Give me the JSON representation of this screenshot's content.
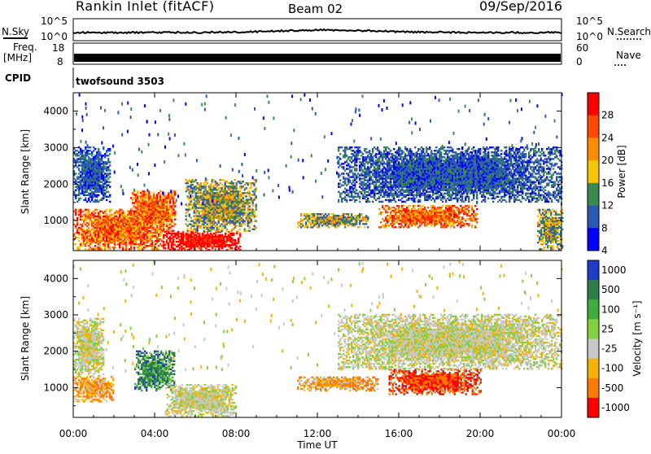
{
  "header": {
    "station": "Rankin Inlet (fitACF)",
    "beam": "Beam 02",
    "date": "09/Sep/2016"
  },
  "strips": {
    "nsky_label": "N.Sky",
    "nsky_ticks": [
      "10^5",
      "10^0"
    ],
    "nsearch_label": "N.Search",
    "nsearch_ticks": [
      "10^5",
      "10^0"
    ],
    "freq_label": "Freq.",
    "freq_unit": "[MHz]",
    "freq_ticks": [
      "18",
      "8"
    ],
    "nave_label": "Nave",
    "nave_ticks": [
      "60",
      "0"
    ],
    "cpid_label": "CPID",
    "cpid_value": "twofsound 3503"
  },
  "x_axis": {
    "title": "Time UT",
    "ticks": [
      "00:00",
      "04:00",
      "08:00",
      "12:00",
      "16:00",
      "20:00",
      "00:00"
    ],
    "hours": [
      0,
      4,
      8,
      12,
      16,
      20,
      24
    ]
  },
  "chart_data": [
    {
      "type": "heatmap",
      "panel": "power",
      "ylabel": "Slant Range [km]",
      "ylim": [
        180,
        4500
      ],
      "y_ticks": [
        1000,
        2000,
        3000,
        4000
      ],
      "xlim_hours": [
        0,
        24
      ],
      "colorbar": {
        "title": "Power [dB]",
        "ticks": [
          "28",
          "24",
          "20",
          "16",
          "12",
          "8",
          "4"
        ],
        "colors": [
          "#ff0000",
          "#ff4a00",
          "#ff8c00",
          "#f7c600",
          "#3a8a50",
          "#2a5ab0",
          "#0000ff"
        ]
      },
      "regions": [
        {
          "t0": 0.0,
          "t1": 4.4,
          "r0": 200,
          "r1": 1300,
          "level": "strong"
        },
        {
          "t0": 2.8,
          "t1": 5.0,
          "r0": 700,
          "r1": 1800,
          "level": "strong"
        },
        {
          "t0": 4.4,
          "t1": 8.2,
          "r0": 180,
          "r1": 700,
          "level": "very-strong"
        },
        {
          "t0": 5.5,
          "t1": 9.0,
          "r0": 700,
          "r1": 2100,
          "level": "moderate"
        },
        {
          "t0": 0.0,
          "t1": 1.8,
          "r0": 1500,
          "r1": 3000,
          "level": "weak"
        },
        {
          "t0": 11.0,
          "t1": 14.5,
          "r0": 800,
          "r1": 1200,
          "level": "moderate"
        },
        {
          "t0": 15.0,
          "t1": 19.8,
          "r0": 800,
          "r1": 1400,
          "level": "strong"
        },
        {
          "t0": 13.0,
          "t1": 24.0,
          "r0": 1500,
          "r1": 3000,
          "level": "weak"
        },
        {
          "t0": 22.8,
          "t1": 24.0,
          "r0": 200,
          "r1": 1300,
          "level": "moderate"
        }
      ]
    },
    {
      "type": "heatmap",
      "panel": "velocity",
      "ylabel": "Slant Range [km]",
      "ylim": [
        180,
        4500
      ],
      "y_ticks": [
        1000,
        2000,
        3000,
        4000
      ],
      "xlim_hours": [
        0,
        24
      ],
      "colorbar": {
        "title": "Velocity [m s⁻¹]",
        "ticks": [
          "1000",
          "500",
          "100",
          "25",
          "-25",
          "-100",
          "-500",
          "-1000"
        ],
        "colors": [
          "#1e3cc8",
          "#2e7d4a",
          "#3fae3f",
          "#80d040",
          "#c8c8c8",
          "#f4b400",
          "#ff7a00",
          "#ff0000"
        ]
      },
      "regions": [
        {
          "t0": 0.0,
          "t1": 2.0,
          "r0": 600,
          "r1": 1300,
          "level": "negative"
        },
        {
          "t0": 0.0,
          "t1": 1.5,
          "r0": 1300,
          "r1": 2900,
          "level": "zero"
        },
        {
          "t0": 3.0,
          "t1": 5.0,
          "r0": 900,
          "r1": 2000,
          "level": "positive"
        },
        {
          "t0": 4.5,
          "t1": 8.0,
          "r0": 200,
          "r1": 1100,
          "level": "zero"
        },
        {
          "t0": 11.0,
          "t1": 15.0,
          "r0": 900,
          "r1": 1300,
          "level": "negative"
        },
        {
          "t0": 15.5,
          "t1": 20.0,
          "r0": 800,
          "r1": 1500,
          "level": "strong-negative"
        },
        {
          "t0": 13.0,
          "t1": 24.0,
          "r0": 1500,
          "r1": 3000,
          "level": "zero"
        }
      ]
    }
  ]
}
